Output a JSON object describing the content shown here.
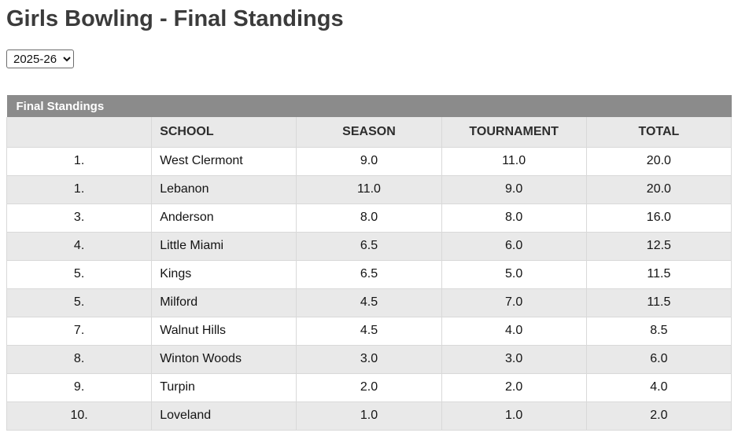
{
  "page": {
    "title": "Girls Bowling - Final Standings"
  },
  "season_select": {
    "selected": "2025-26"
  },
  "table": {
    "caption": "Final Standings",
    "columns": [
      "",
      "SCHOOL",
      "SEASON",
      "TOURNAMENT",
      "TOTAL"
    ],
    "rows": [
      {
        "rank": "1.",
        "school": "West Clermont",
        "season": "9.0",
        "tournament": "11.0",
        "total": "20.0"
      },
      {
        "rank": "1.",
        "school": "Lebanon",
        "season": "11.0",
        "tournament": "9.0",
        "total": "20.0"
      },
      {
        "rank": "3.",
        "school": "Anderson",
        "season": "8.0",
        "tournament": "8.0",
        "total": "16.0"
      },
      {
        "rank": "4.",
        "school": "Little Miami",
        "season": "6.5",
        "tournament": "6.0",
        "total": "12.5"
      },
      {
        "rank": "5.",
        "school": "Kings",
        "season": "6.5",
        "tournament": "5.0",
        "total": "11.5"
      },
      {
        "rank": "5.",
        "school": "Milford",
        "season": "4.5",
        "tournament": "7.0",
        "total": "11.5"
      },
      {
        "rank": "7.",
        "school": "Walnut Hills",
        "season": "4.5",
        "tournament": "4.0",
        "total": "8.5"
      },
      {
        "rank": "8.",
        "school": "Winton Woods",
        "season": "3.0",
        "tournament": "3.0",
        "total": "6.0"
      },
      {
        "rank": "9.",
        "school": "Turpin",
        "season": "2.0",
        "tournament": "2.0",
        "total": "4.0"
      },
      {
        "rank": "10.",
        "school": "Loveland",
        "season": "1.0",
        "tournament": "1.0",
        "total": "2.0"
      }
    ],
    "colors": {
      "caption_bg": "#8b8b8b",
      "caption_text": "#ffffff",
      "header_bg": "#e9e9e9",
      "row_bg": "#ffffff",
      "row_alt_bg": "#e9e9e9",
      "border": "#d9d9d9",
      "title_text": "#3b3b3b"
    }
  }
}
